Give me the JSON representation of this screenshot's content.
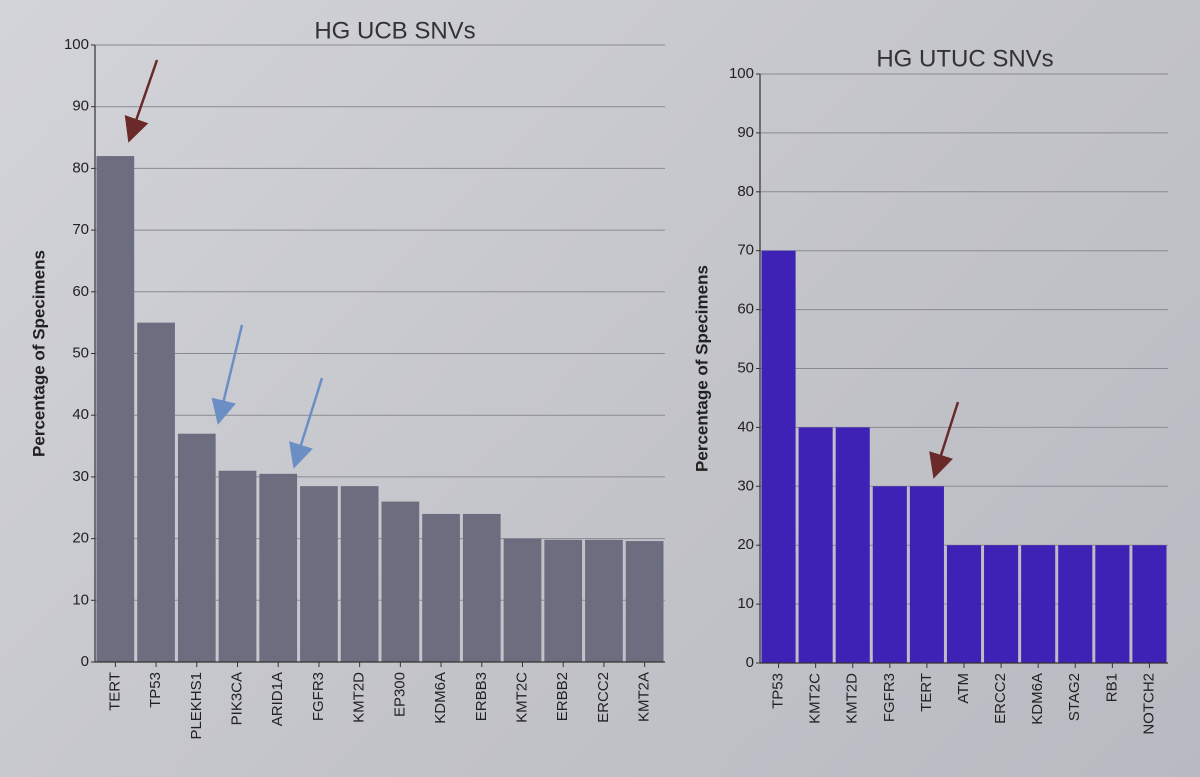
{
  "chart_data": [
    {
      "type": "bar",
      "title": "HG UCB SNVs",
      "y_label": "Percentage of Specimens",
      "categories": [
        "TERT",
        "TP53",
        "PLEKHS1",
        "PIK3CA",
        "ARID1A",
        "FGFR3",
        "KMT2D",
        "EP300",
        "KDM6A",
        "ERBB3",
        "KMT2C",
        "ERBB2",
        "ERCC2",
        "KMT2A"
      ],
      "values": [
        82,
        55,
        37,
        31,
        30.5,
        28.5,
        28.5,
        26,
        24,
        24,
        20,
        19.8,
        19.8,
        19.6
      ],
      "color": "#6c6d7f",
      "ylim": [
        0,
        100
      ],
      "yticks": [
        0,
        10,
        20,
        30,
        40,
        50,
        60,
        70,
        80,
        90,
        100
      ],
      "grid": true
    },
    {
      "type": "bar",
      "title": "HG UTUC SNVs",
      "y_label": "Percentage of Specimens",
      "categories": [
        "TP53",
        "KMT2C",
        "KMT2D",
        "FGFR3",
        "TERT",
        "ATM",
        "ERCC2",
        "KDM6A",
        "STAG2",
        "RB1",
        "NOTCH2"
      ],
      "values": [
        70,
        40,
        40,
        30,
        30,
        20,
        20,
        20,
        20,
        20,
        20
      ],
      "color": "#3d22b5",
      "ylim": [
        0,
        100
      ],
      "yticks": [
        0,
        10,
        20,
        30,
        40,
        50,
        60,
        70,
        80,
        90,
        100
      ],
      "grid": true
    }
  ]
}
